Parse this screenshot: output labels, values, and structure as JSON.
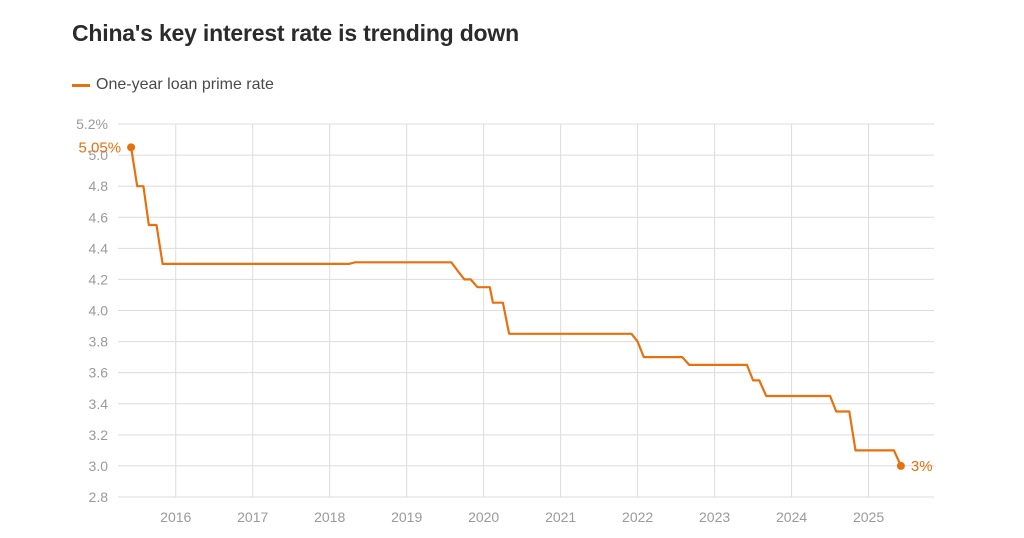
{
  "title": "China's key interest rate is trending down",
  "colors": {
    "series": "#e8700f",
    "grid": "#dcdcdc",
    "tick": "#9a9a9a"
  },
  "chart_data": {
    "type": "line",
    "title": "China's key interest rate is trending down",
    "xlabel": "",
    "ylabel": "",
    "ylim": [
      2.8,
      5.2
    ],
    "yticks": [
      2.8,
      3.0,
      3.2,
      3.4,
      3.6,
      3.8,
      4.0,
      4.2,
      4.4,
      4.6,
      4.8,
      5.0,
      5.2
    ],
    "ytick_labels": [
      "2.8",
      "3.0",
      "3.2",
      "3.4",
      "3.6",
      "3.8",
      "4.0",
      "4.2",
      "4.4",
      "4.6",
      "4.8",
      "5.0",
      "5.2%"
    ],
    "xlim": [
      2015.25,
      2025.85
    ],
    "xticks": [
      2016,
      2017,
      2018,
      2019,
      2020,
      2021,
      2022,
      2023,
      2024,
      2025
    ],
    "xtick_labels": [
      "2016",
      "2017",
      "2018",
      "2019",
      "2020",
      "2021",
      "2022",
      "2023",
      "2024",
      "2025"
    ],
    "legend": {
      "position": "top-left",
      "entries": [
        "One-year loan prime rate"
      ]
    },
    "series": [
      {
        "name": "One-year loan prime rate",
        "points": [
          [
            2015.42,
            5.05
          ],
          [
            2015.5,
            4.8
          ],
          [
            2015.58,
            4.8
          ],
          [
            2015.65,
            4.55
          ],
          [
            2015.75,
            4.55
          ],
          [
            2015.83,
            4.3
          ],
          [
            2018.25,
            4.3
          ],
          [
            2018.33,
            4.31
          ],
          [
            2019.58,
            4.31
          ],
          [
            2019.67,
            4.25
          ],
          [
            2019.75,
            4.2
          ],
          [
            2019.83,
            4.2
          ],
          [
            2019.92,
            4.15
          ],
          [
            2020.08,
            4.15
          ],
          [
            2020.12,
            4.05
          ],
          [
            2020.25,
            4.05
          ],
          [
            2020.33,
            3.85
          ],
          [
            2021.92,
            3.85
          ],
          [
            2022.0,
            3.8
          ],
          [
            2022.08,
            3.7
          ],
          [
            2022.58,
            3.7
          ],
          [
            2022.67,
            3.65
          ],
          [
            2023.42,
            3.65
          ],
          [
            2023.5,
            3.55
          ],
          [
            2023.58,
            3.55
          ],
          [
            2023.67,
            3.45
          ],
          [
            2024.5,
            3.45
          ],
          [
            2024.58,
            3.35
          ],
          [
            2024.75,
            3.35
          ],
          [
            2024.83,
            3.1
          ],
          [
            2025.33,
            3.1
          ],
          [
            2025.42,
            3.0
          ]
        ]
      }
    ],
    "annotations": [
      {
        "text": "5.05%",
        "x": 2015.42,
        "y": 5.05,
        "side": "left"
      },
      {
        "text": "3%",
        "x": 2025.42,
        "y": 3.0,
        "side": "right"
      }
    ]
  }
}
